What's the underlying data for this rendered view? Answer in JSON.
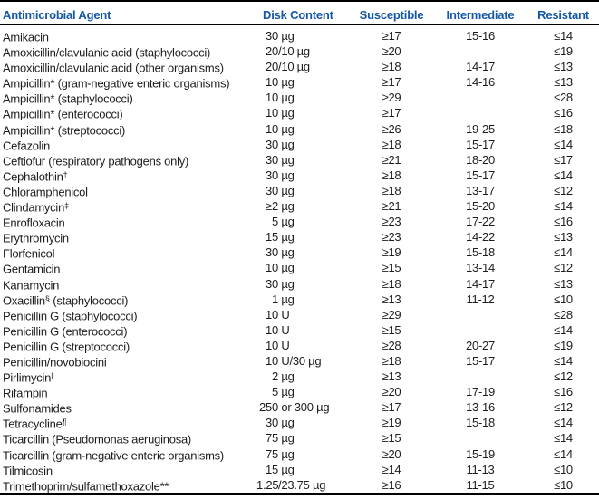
{
  "colors": {
    "header_blue": "#1457a6",
    "body_text": "#1d1d1d",
    "rule_black": "#000000"
  },
  "table": {
    "columns": [
      "Antimicrobial Agent",
      "Disk Content",
      "Susceptible",
      "Intermediate",
      "Resistant"
    ],
    "rows": [
      {
        "agent_pre": "Amikacin",
        "agent_sup": "",
        "agent_post": "",
        "disk_num": "30",
        "disk_rest": " µg",
        "susceptible": "≥17",
        "intermediate": "15-16",
        "resistant": "≤14"
      },
      {
        "agent_pre": "Amoxicillin/clavulanic acid (staphylococci)",
        "agent_sup": "",
        "agent_post": "",
        "disk_num": "20",
        "disk_rest": "/10 µg",
        "susceptible": "≥20",
        "intermediate": "",
        "resistant": "≤19"
      },
      {
        "agent_pre": "Amoxicillin/clavulanic acid (other organisms)",
        "agent_sup": "",
        "agent_post": "",
        "disk_num": "20",
        "disk_rest": "/10 µg",
        "susceptible": "≥18",
        "intermediate": "14-17",
        "resistant": "≤13"
      },
      {
        "agent_pre": "Ampicillin* (gram-negative enteric organisms)",
        "agent_sup": "",
        "agent_post": "",
        "disk_num": "10",
        "disk_rest": " µg",
        "susceptible": "≥17",
        "intermediate": "14-16",
        "resistant": "≤13"
      },
      {
        "agent_pre": "Ampicillin* (staphylococci)",
        "agent_sup": "",
        "agent_post": "",
        "disk_num": "10",
        "disk_rest": " µg",
        "susceptible": "≥29",
        "intermediate": "",
        "resistant": "≤28"
      },
      {
        "agent_pre": "Ampicillin* (enterococci)",
        "agent_sup": "",
        "agent_post": "",
        "disk_num": "10",
        "disk_rest": " µg",
        "susceptible": "≥17",
        "intermediate": "",
        "resistant": "≤16"
      },
      {
        "agent_pre": "Ampicillin* (streptococci)",
        "agent_sup": "",
        "agent_post": "",
        "disk_num": "10",
        "disk_rest": " µg",
        "susceptible": "≥26",
        "intermediate": "19-25",
        "resistant": "≤18"
      },
      {
        "agent_pre": "Cefazolin",
        "agent_sup": "",
        "agent_post": "",
        "disk_num": "30",
        "disk_rest": " µg",
        "susceptible": "≥18",
        "intermediate": "15-17",
        "resistant": "≤14"
      },
      {
        "agent_pre": "Ceftiofur (respiratory pathogens only)",
        "agent_sup": "",
        "agent_post": "",
        "disk_num": "30",
        "disk_rest": " µg",
        "susceptible": "≥21",
        "intermediate": "18-20",
        "resistant": "≤17"
      },
      {
        "agent_pre": "Cephalothin",
        "agent_sup": "†",
        "agent_post": "",
        "disk_num": "30",
        "disk_rest": " µg",
        "susceptible": "≥18",
        "intermediate": "15-17",
        "resistant": "≤14"
      },
      {
        "agent_pre": "Chloramphenicol",
        "agent_sup": "",
        "agent_post": "",
        "disk_num": "30",
        "disk_rest": " µg",
        "susceptible": "≥18",
        "intermediate": "13-17",
        "resistant": "≤12"
      },
      {
        "agent_pre": "Clindamycin",
        "agent_sup": "‡",
        "agent_post": "",
        "disk_num": "≥2",
        "disk_rest": " µg",
        "susceptible": "≥21",
        "intermediate": "15-20",
        "resistant": "≤14"
      },
      {
        "agent_pre": "Enrofloxacin",
        "agent_sup": "",
        "agent_post": "",
        "disk_num": "5",
        "disk_rest": " µg",
        "susceptible": "≥23",
        "intermediate": "17-22",
        "resistant": "≤16"
      },
      {
        "agent_pre": "Erythromycin",
        "agent_sup": "",
        "agent_post": "",
        "disk_num": "15",
        "disk_rest": " µg",
        "susceptible": "≥23",
        "intermediate": "14-22",
        "resistant": "≤13"
      },
      {
        "agent_pre": "Florfenicol",
        "agent_sup": "",
        "agent_post": "",
        "disk_num": "30",
        "disk_rest": " µg",
        "susceptible": "≥19",
        "intermediate": "15-18",
        "resistant": "≤14"
      },
      {
        "agent_pre": "Gentamicin",
        "agent_sup": "",
        "agent_post": "",
        "disk_num": "10",
        "disk_rest": " µg",
        "susceptible": "≥15",
        "intermediate": "13-14",
        "resistant": "≤12"
      },
      {
        "agent_pre": "Kanamycin",
        "agent_sup": "",
        "agent_post": "",
        "disk_num": "30",
        "disk_rest": " µg",
        "susceptible": "≥18",
        "intermediate": "14-17",
        "resistant": "≤13"
      },
      {
        "agent_pre": "Oxacillin",
        "agent_sup": "§",
        "agent_post": " (staphylococci)",
        "disk_num": "1",
        "disk_rest": " µg",
        "susceptible": "≥13",
        "intermediate": "11-12",
        "resistant": "≤10"
      },
      {
        "agent_pre": "Penicillin G (staphylococci)",
        "agent_sup": "",
        "agent_post": "",
        "disk_num": "10",
        "disk_rest": " U",
        "susceptible": "≥29",
        "intermediate": "",
        "resistant": "≤28"
      },
      {
        "agent_pre": "Penicillin G (enterococci)",
        "agent_sup": "",
        "agent_post": "",
        "disk_num": "10",
        "disk_rest": " U",
        "susceptible": "≥15",
        "intermediate": "",
        "resistant": "≤14"
      },
      {
        "agent_pre": "Penicillin G (streptococci)",
        "agent_sup": "",
        "agent_post": "",
        "disk_num": "10",
        "disk_rest": " U",
        "susceptible": "≥28",
        "intermediate": "20-27",
        "resistant": "≤19"
      },
      {
        "agent_pre": "Penicillin/novobiocini",
        "agent_sup": "",
        "agent_post": "",
        "disk_num": "10",
        "disk_rest": " U/30 µg",
        "susceptible": "≥18",
        "intermediate": "15-17",
        "resistant": "≤14"
      },
      {
        "agent_pre": "Pirlimycin",
        "agent_sup": "‖",
        "agent_post": "",
        "disk_num": "2",
        "disk_rest": " µg",
        "susceptible": "≥13",
        "intermediate": "",
        "resistant": "≤12"
      },
      {
        "agent_pre": "Rifampin",
        "agent_sup": "",
        "agent_post": "",
        "disk_num": "5",
        "disk_rest": " µg",
        "susceptible": "≥20",
        "intermediate": "17-19",
        "resistant": "≤16"
      },
      {
        "agent_pre": "Sulfonamides",
        "agent_sup": "",
        "agent_post": "",
        "disk_num": "250",
        "disk_rest": " or 300 µg",
        "susceptible": "≥17",
        "intermediate": "13-16",
        "resistant": "≤12"
      },
      {
        "agent_pre": "Tetracycline",
        "agent_sup": "¶",
        "agent_post": "",
        "disk_num": "30",
        "disk_rest": " µg",
        "susceptible": "≥19",
        "intermediate": "15-18",
        "resistant": "≤14"
      },
      {
        "agent_pre": "Ticarcillin (Pseudomonas aeruginosa)",
        "agent_sup": "",
        "agent_post": "",
        "disk_num": "75",
        "disk_rest": " µg",
        "susceptible": "≥15",
        "intermediate": "",
        "resistant": "≤14"
      },
      {
        "agent_pre": "Ticarcillin (gram-negative enteric organisms)",
        "agent_sup": "",
        "agent_post": "",
        "disk_num": "75",
        "disk_rest": " µg",
        "susceptible": "≥20",
        "intermediate": "15-19",
        "resistant": "≤14"
      },
      {
        "agent_pre": "Tilmicosin",
        "agent_sup": "",
        "agent_post": "",
        "disk_num": "15",
        "disk_rest": " µg",
        "susceptible": "≥14",
        "intermediate": "11-13",
        "resistant": "≤10"
      },
      {
        "agent_pre": "Trimethoprim/sulfamethoxazole**",
        "agent_sup": "",
        "agent_post": "",
        "disk_num": "1.25",
        "disk_rest": "/23.75 µg",
        "susceptible": "≥16",
        "intermediate": "11-15",
        "resistant": "≤10"
      }
    ]
  }
}
